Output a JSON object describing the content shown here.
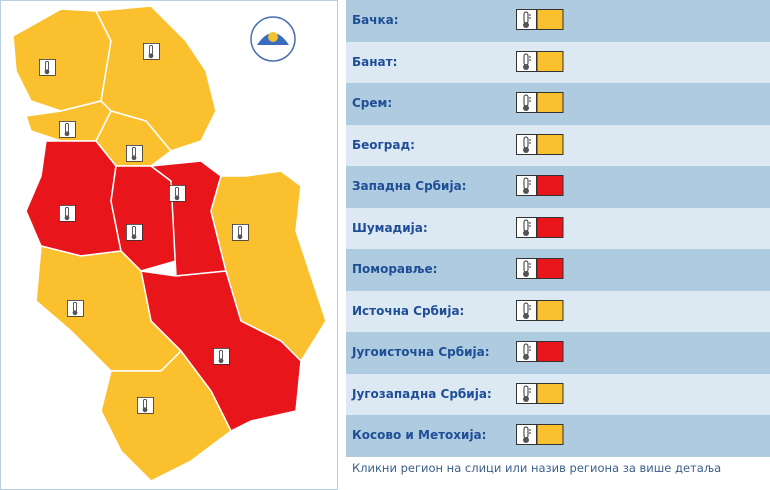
{
  "regions": [
    {
      "name": "Бачка:",
      "color": "#fbc02d"
    },
    {
      "name": "Банат:",
      "color": "#fbc02d"
    },
    {
      "name": "Срем:",
      "color": "#fbc02d"
    },
    {
      "name": "Београд:",
      "color": "#fbc02d"
    },
    {
      "name": "Западна Србија:",
      "color": "#e8161b"
    },
    {
      "name": "Шумадија:",
      "color": "#e8161b"
    },
    {
      "name": "Поморавље:",
      "color": "#e8161b"
    },
    {
      "name": "Источна Србија:",
      "color": "#fbc02d"
    },
    {
      "name": "Југоисточна Србија:",
      "color": "#e8161b"
    },
    {
      "name": "Југозападна Србија:",
      "color": "#fbc02d"
    },
    {
      "name": "Косово и Метохија:",
      "color": "#fbc02d"
    }
  ],
  "footer": "Кликни регион на слици или назив региона за више детаља"
}
